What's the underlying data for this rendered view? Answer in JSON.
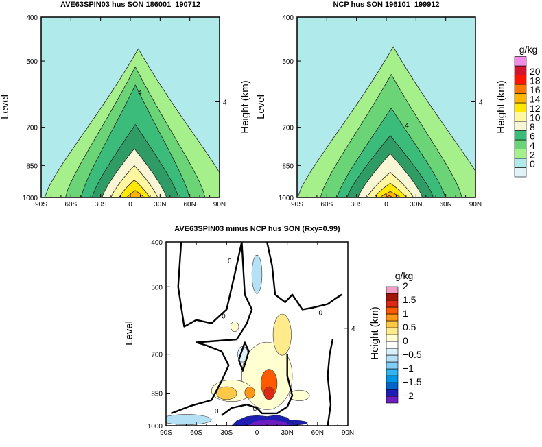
{
  "colors": {
    "hus_bins": [
      "#e0f4f8",
      "#b0eaea",
      "#a6f08c",
      "#6ad476",
      "#3cbc7a",
      "#2e9c64",
      "#f8f6d4",
      "#fff8a0",
      "#ffe800",
      "#ffb400",
      "#ff7800",
      "#ff1400",
      "#d4142c",
      "#b41472",
      "#f08ce4"
    ],
    "diff_bins": [
      "#6e1ebe",
      "#1e1eb4",
      "#0064c8",
      "#0096e6",
      "#32b4f0",
      "#82cdf5",
      "#b4e1f5",
      "#dcf0fa",
      "#ffffff",
      "#ffffd2",
      "#ffeb8c",
      "#ffc846",
      "#ff9614",
      "#ff5a00",
      "#dc2814",
      "#a0140a",
      "#f0a0c8"
    ]
  },
  "chart_data": [
    {
      "type": "heatmap",
      "title": "AVE63SPIN03 hus SON 186001_190712",
      "ylabel": "Level",
      "y2label": "Height (km)",
      "y2ticks": [
        "4"
      ],
      "xticks": [
        "90S",
        "60S",
        "30S",
        "0",
        "30N",
        "60N",
        "90N"
      ],
      "yticks": [
        "400",
        "500",
        "700",
        "850",
        "1000"
      ],
      "xlim": [
        -90,
        90
      ],
      "ylim": [
        1000,
        400
      ],
      "colorbar": {
        "units": "g/kg",
        "levels": [
          "0",
          "2",
          "4",
          "6",
          "8",
          "10",
          "12",
          "14",
          "16",
          "18",
          "20"
        ]
      },
      "contours": [
        {
          "level": 2,
          "peak_p": 470,
          "halfwidth_deg": 95,
          "center_lat": 8
        },
        {
          "level": 4,
          "peak_p": 515,
          "halfwidth_deg": 71,
          "center_lat": 5
        },
        {
          "level": 6,
          "peak_p": 565,
          "halfwidth_deg": 55,
          "center_lat": 5
        },
        {
          "level": 8,
          "peak_p": 690,
          "halfwidth_deg": 44,
          "center_lat": 5
        },
        {
          "level": 10,
          "peak_p": 780,
          "halfwidth_deg": 33,
          "center_lat": 4
        },
        {
          "level": 12,
          "peak_p": 850,
          "halfwidth_deg": 24,
          "center_lat": 4
        },
        {
          "level": 14,
          "peak_p": 915,
          "halfwidth_deg": 16,
          "center_lat": 4
        },
        {
          "level": 16,
          "peak_p": 965,
          "halfwidth_deg": 10,
          "center_lat": 5
        }
      ],
      "annotations": [
        {
          "text": "4",
          "lat": 11,
          "p": 610
        }
      ]
    },
    {
      "type": "heatmap",
      "title": "NCP hus SON 196101_199912",
      "ylabel": "Level",
      "y2label": "Height (km)",
      "y2ticks": [
        "4"
      ],
      "xticks": [
        "90S",
        "60S",
        "30S",
        "0",
        "30N",
        "60N",
        "90N"
      ],
      "yticks": [
        "400",
        "500",
        "700",
        "850",
        "1000"
      ],
      "xlim": [
        -90,
        90
      ],
      "ylim": [
        1000,
        400
      ],
      "contours": [
        {
          "level": 2,
          "peak_p": 465,
          "halfwidth_deg": 97,
          "center_lat": 7
        },
        {
          "level": 4,
          "peak_p": 535,
          "halfwidth_deg": 72,
          "center_lat": 5
        },
        {
          "level": 6,
          "peak_p": 635,
          "halfwidth_deg": 55,
          "center_lat": 5
        },
        {
          "level": 8,
          "peak_p": 730,
          "halfwidth_deg": 44,
          "center_lat": 4
        },
        {
          "level": 10,
          "peak_p": 800,
          "halfwidth_deg": 33,
          "center_lat": 4
        },
        {
          "level": 12,
          "peak_p": 880,
          "halfwidth_deg": 24,
          "center_lat": 4
        },
        {
          "level": 14,
          "peak_p": 930,
          "halfwidth_deg": 17,
          "center_lat": 4
        },
        {
          "level": 16,
          "peak_p": 970,
          "halfwidth_deg": 12,
          "center_lat": 4
        },
        {
          "level": 18,
          "peak_p": 990,
          "halfwidth_deg": 6,
          "center_lat": 3
        }
      ],
      "annotations": [
        {
          "text": "4",
          "lat": 25,
          "p": 690
        }
      ]
    },
    {
      "type": "heatmap",
      "title": "AVE63SPIN03 minus NCP hus SON (Rxy=0.99)",
      "ylabel": "Level",
      "y2label": "Height (km)",
      "y2ticks": [
        "4"
      ],
      "xticks": [
        "90S",
        "60S",
        "30S",
        "0",
        "30N",
        "60N",
        "90N"
      ],
      "yticks": [
        "400",
        "500",
        "700",
        "850",
        "1000"
      ],
      "xlim": [
        -90,
        90
      ],
      "ylim": [
        1000,
        400
      ],
      "colorbar": {
        "units": "g/kg",
        "levels": [
          "−2",
          "−1.5",
          "−1",
          "−0.5",
          "0",
          "0.5",
          "1",
          "1.5",
          "2"
        ]
      },
      "positive_anomalies": [
        {
          "lat": 12,
          "p": 810,
          "dlat": 8,
          "dp": 115,
          "bin": 13
        },
        {
          "lat": 12,
          "p": 850,
          "dlat": 5,
          "dp": 55,
          "bin": 14
        },
        {
          "lat": 25,
          "p": 635,
          "dlat": 9,
          "dp": 130,
          "bin": 10
        },
        {
          "lat": -30,
          "p": 850,
          "dlat": 10,
          "dp": 55,
          "bin": 11
        },
        {
          "lat": -7,
          "p": 848,
          "dlat": 5,
          "dp": 48,
          "bin": 12
        },
        {
          "lat": 42,
          "p": 860,
          "dlat": 10,
          "dp": 45,
          "bin": 9
        },
        {
          "lat": -22,
          "p": 610,
          "dlat": 4,
          "dp": 30,
          "bin": 9
        }
      ],
      "negative_anomalies": [
        {
          "lat": 0,
          "p": 470,
          "dlat": 5,
          "dp": 90,
          "bin": 6
        },
        {
          "lat": -14,
          "p": 700,
          "dlat": 5,
          "dp": 55,
          "bin": 7
        },
        {
          "lat": -70,
          "p": 970,
          "dlat": 25,
          "dp": 50,
          "bin": 6
        },
        {
          "lat": 22,
          "p": 985,
          "dlat": 28,
          "dp": 30,
          "bin": 1
        }
      ],
      "contour_labels": [
        "0",
        "0",
        "0",
        "0",
        "0"
      ]
    }
  ]
}
